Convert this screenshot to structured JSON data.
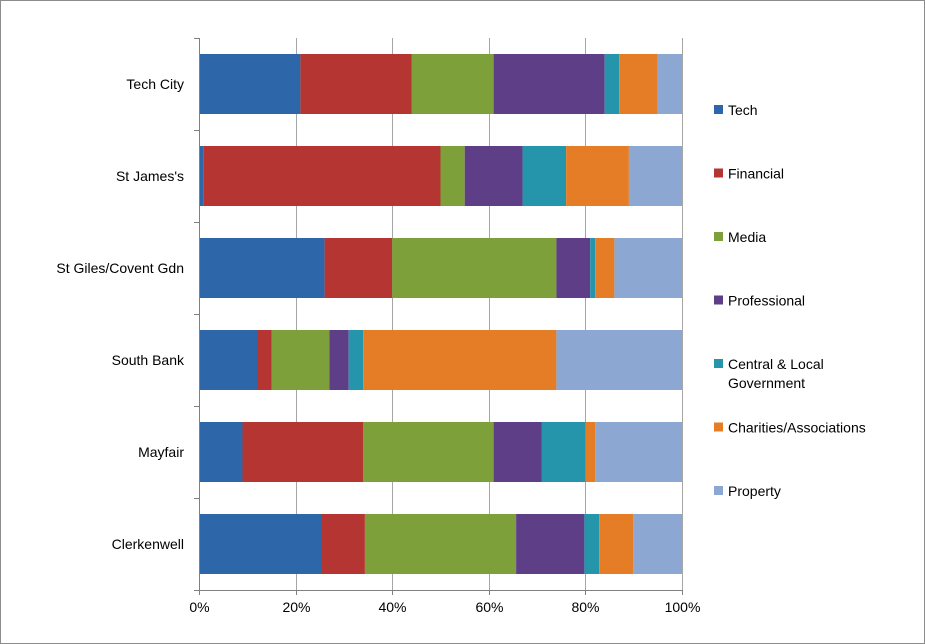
{
  "chart_data": {
    "type": "bar",
    "orientation": "horizontal",
    "stacked": "percent",
    "categories": [
      "Tech City",
      "St James's",
      "St Giles/Covent Gdn",
      "South Bank",
      "Mayfair",
      "Clerkenwell"
    ],
    "series": [
      {
        "name": "Tech",
        "color": "#2e66aa",
        "values": [
          21,
          1,
          26,
          12,
          9,
          25
        ]
      },
      {
        "name": "Financial",
        "color": "#b43532",
        "values": [
          23,
          49,
          14,
          3,
          25,
          9
        ]
      },
      {
        "name": "Media",
        "color": "#7ea03b",
        "values": [
          17,
          5,
          34,
          12,
          27,
          31
        ]
      },
      {
        "name": "Professional",
        "color": "#5e3e87",
        "values": [
          23,
          12,
          7,
          4,
          10,
          14
        ]
      },
      {
        "name": "Central & Local Government",
        "color": "#2595ab",
        "values": [
          3,
          9,
          1,
          3,
          9,
          3
        ]
      },
      {
        "name": "Charities/Associations",
        "color": "#e47d26",
        "values": [
          8,
          13,
          4,
          40,
          2,
          7
        ]
      },
      {
        "name": "Property",
        "color": "#8ca8d2",
        "values": [
          5,
          11,
          14,
          26,
          18,
          10
        ]
      }
    ],
    "xaxis": {
      "min": 0,
      "max": 100,
      "ticks": [
        "0%",
        "20%",
        "40%",
        "60%",
        "80%",
        "100%"
      ]
    },
    "grid": true,
    "legend": "right",
    "title": "",
    "xlabel": "",
    "ylabel": ""
  }
}
